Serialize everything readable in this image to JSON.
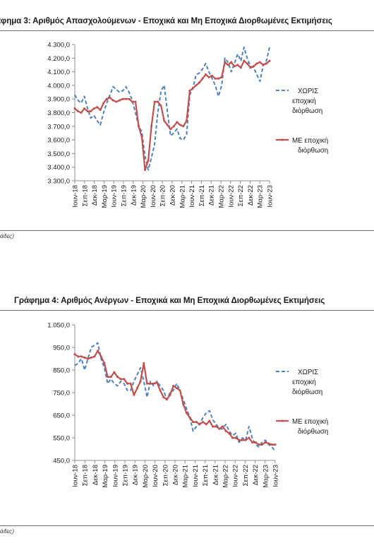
{
  "page": {
    "note1": "άδες)",
    "note2": "άδες)"
  },
  "chart_data": [
    {
      "type": "line",
      "title": "άφημα 3: Αριθμός Απασχολούμενων - Εποχικά και Μη Εποχικά Διορθωμένες Εκτιμήσεις",
      "ylim": [
        3300,
        4300
      ],
      "yticks": [
        "3.300,0",
        "3.400,0",
        "3.500,0",
        "3.600,0",
        "3.700,0",
        "3.800,0",
        "3.900,0",
        "4.000,0",
        "4.100,0",
        "4.200,0",
        "4.300,0"
      ],
      "xticks": [
        "Ιουν-18",
        "Σεπ-18",
        "Δεκ-18",
        "Μαρ-19",
        "Ιουν-19",
        "Σεπ-19",
        "Δεκ-19",
        "Μαρ-20",
        "Ιουν-20",
        "Σεπ-20",
        "Δεκ-20",
        "Μαρ-21",
        "Ιουν-21",
        "Σεπ-21",
        "Δεκ-21",
        "Μαρ-22",
        "Ιουν-22",
        "Σεπ-22",
        "Δεκ-22",
        "Μαρ-23",
        "Ιουν-23"
      ],
      "legend": [
        "ΧΩΡΙΣ\nεποχική\nδιόρθωση",
        "ΜΕ εποχική\nδιόρθωση"
      ],
      "series": [
        {
          "name": "ΧΩΡΙΣ εποχική διόρθωση",
          "color": "#4f81bd",
          "values": [
            3930,
            3890,
            3870,
            3920,
            3830,
            3760,
            3780,
            3740,
            3710,
            3800,
            3870,
            3930,
            3990,
            3970,
            3950,
            3960,
            3990,
            3950,
            3890,
            3800,
            3700,
            3660,
            3480,
            3380,
            3470,
            3570,
            3800,
            3960,
            4000,
            3810,
            3630,
            3650,
            3680,
            3610,
            3600,
            3640,
            3930,
            3980,
            4080,
            4090,
            4120,
            4160,
            4100,
            4050,
            4000,
            3920,
            4000,
            4200,
            4170,
            4100,
            4160,
            4230,
            4180,
            4280,
            4200,
            4140,
            4130,
            4080,
            4030,
            4150,
            4180,
            4280
          ]
        },
        {
          "name": "ΜΕ εποχική διόρθωση",
          "color": "#c0504d",
          "values": [
            3830,
            3810,
            3800,
            3830,
            3810,
            3810,
            3830,
            3840,
            3820,
            3870,
            3900,
            3910,
            3890,
            3880,
            3890,
            3900,
            3900,
            3900,
            3880,
            3880,
            3700,
            3620,
            3380,
            3450,
            3700,
            3880,
            3880,
            3850,
            3740,
            3710,
            3680,
            3700,
            3730,
            3710,
            3700,
            3740,
            3960,
            3980,
            4000,
            4020,
            4050,
            4080,
            4060,
            4070,
            4050,
            4050,
            4060,
            4170,
            4150,
            4170,
            4140,
            4150,
            4130,
            4180,
            4160,
            4130,
            4140,
            4160,
            4170,
            4150,
            4160,
            4180
          ]
        }
      ]
    },
    {
      "type": "line",
      "title": "Γράφημα 4: Αριθμός Ανέργων - Εποχικά και Μη Εποχικά Διορθωμένες Εκτιμήσεις",
      "ylim": [
        450,
        1050
      ],
      "yticks": [
        "450,0",
        "550,0",
        "650,0",
        "750,0",
        "850,0",
        "950,0",
        "1.050,0"
      ],
      "xticks": [
        "Ιουν-18",
        "Σεπ-18",
        "Δεκ-18",
        "Μαρ-19",
        "Ιουν-19",
        "Σεπ-19",
        "Δεκ-19",
        "Μαρ-20",
        "Ιουν-20",
        "Σεπ-20",
        "Δεκ-20",
        "Μαρ-21",
        "Ιουν-21",
        "Σεπ-21",
        "Δεκ-21",
        "Μαρ-22",
        "Ιουν-22",
        "Σεπ-22",
        "Δεκ-22",
        "Μαρ-23",
        "Ιουν-23"
      ],
      "legend": [
        "ΧΩΡΙΣ\nεποχική\nδιόρθωση",
        "ΜΕ εποχική\nδιόρθωση"
      ],
      "series": [
        {
          "name": "ΧΩΡΙΣ εποχική διόρθωση",
          "color": "#4f81bd",
          "values": [
            870,
            880,
            900,
            850,
            900,
            950,
            960,
            970,
            900,
            860,
            790,
            810,
            790,
            780,
            800,
            790,
            760,
            760,
            800,
            830,
            860,
            800,
            730,
            800,
            780,
            800,
            780,
            760,
            720,
            750,
            760,
            790,
            760,
            720,
            680,
            640,
            580,
            600,
            610,
            640,
            660,
            670,
            630,
            610,
            590,
            590,
            610,
            580,
            560,
            570,
            530,
            550,
            540,
            600,
            550,
            520,
            510,
            530,
            540,
            520,
            510,
            490
          ]
        },
        {
          "name": "ΜΕ εποχική διόρθωση",
          "color": "#c0504d",
          "values": [
            920,
            910,
            910,
            905,
            900,
            905,
            910,
            935,
            910,
            880,
            820,
            820,
            840,
            820,
            810,
            810,
            790,
            790,
            740,
            770,
            800,
            880,
            790,
            790,
            790,
            795,
            760,
            730,
            720,
            740,
            780,
            770,
            760,
            700,
            660,
            640,
            620,
            620,
            610,
            620,
            610,
            625,
            600,
            600,
            590,
            600,
            580,
            570,
            550,
            550,
            540,
            540,
            540,
            550,
            530,
            530,
            520,
            520,
            530,
            525,
            520,
            520
          ]
        }
      ]
    }
  ]
}
